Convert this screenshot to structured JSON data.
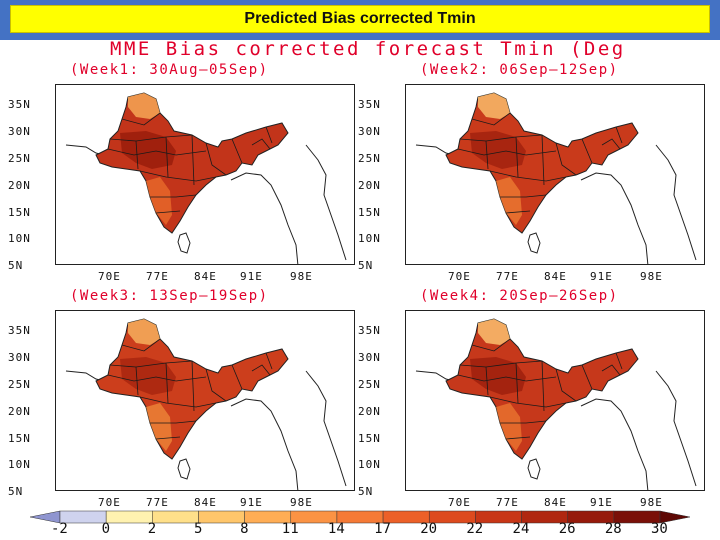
{
  "header": {
    "title": "Predicted Bias corrected Tmin",
    "bar_color": "#4472c4",
    "title_bg": "#ffff00"
  },
  "figure": {
    "main_title": "MME Bias corrected forecast Tmin (Deg",
    "title_color": "#e0002a",
    "lat_labels": [
      "35N",
      "30N",
      "25N",
      "20N",
      "15N",
      "10N",
      "5N"
    ],
    "lon_labels": [
      "70E",
      "77E",
      "84E",
      "91E",
      "98E"
    ],
    "panels": [
      {
        "label": "(Week1: 30Aug—05Sep)",
        "variant": 1
      },
      {
        "label": "(Week2: 06Sep—12Sep)",
        "variant": 2
      },
      {
        "label": "(Week3: 13Sep—19Sep)",
        "variant": 3
      },
      {
        "label": "(Week4: 20Sep—26Sep)",
        "variant": 4
      }
    ]
  },
  "colorbar": {
    "labels": [
      "-2",
      "0",
      "2",
      "5",
      "8",
      "11",
      "14",
      "17",
      "20",
      "22",
      "24",
      "26",
      "28",
      "30"
    ],
    "colors": [
      "#8f95d0",
      "#cfd3ee",
      "#fff2b0",
      "#ffe08a",
      "#ffc66b",
      "#ffad55",
      "#fb9344",
      "#f57a36",
      "#ec6028",
      "#dd4a1e",
      "#c83616",
      "#b02710",
      "#961a0b",
      "#7a1008",
      "#5e0804"
    ]
  }
}
